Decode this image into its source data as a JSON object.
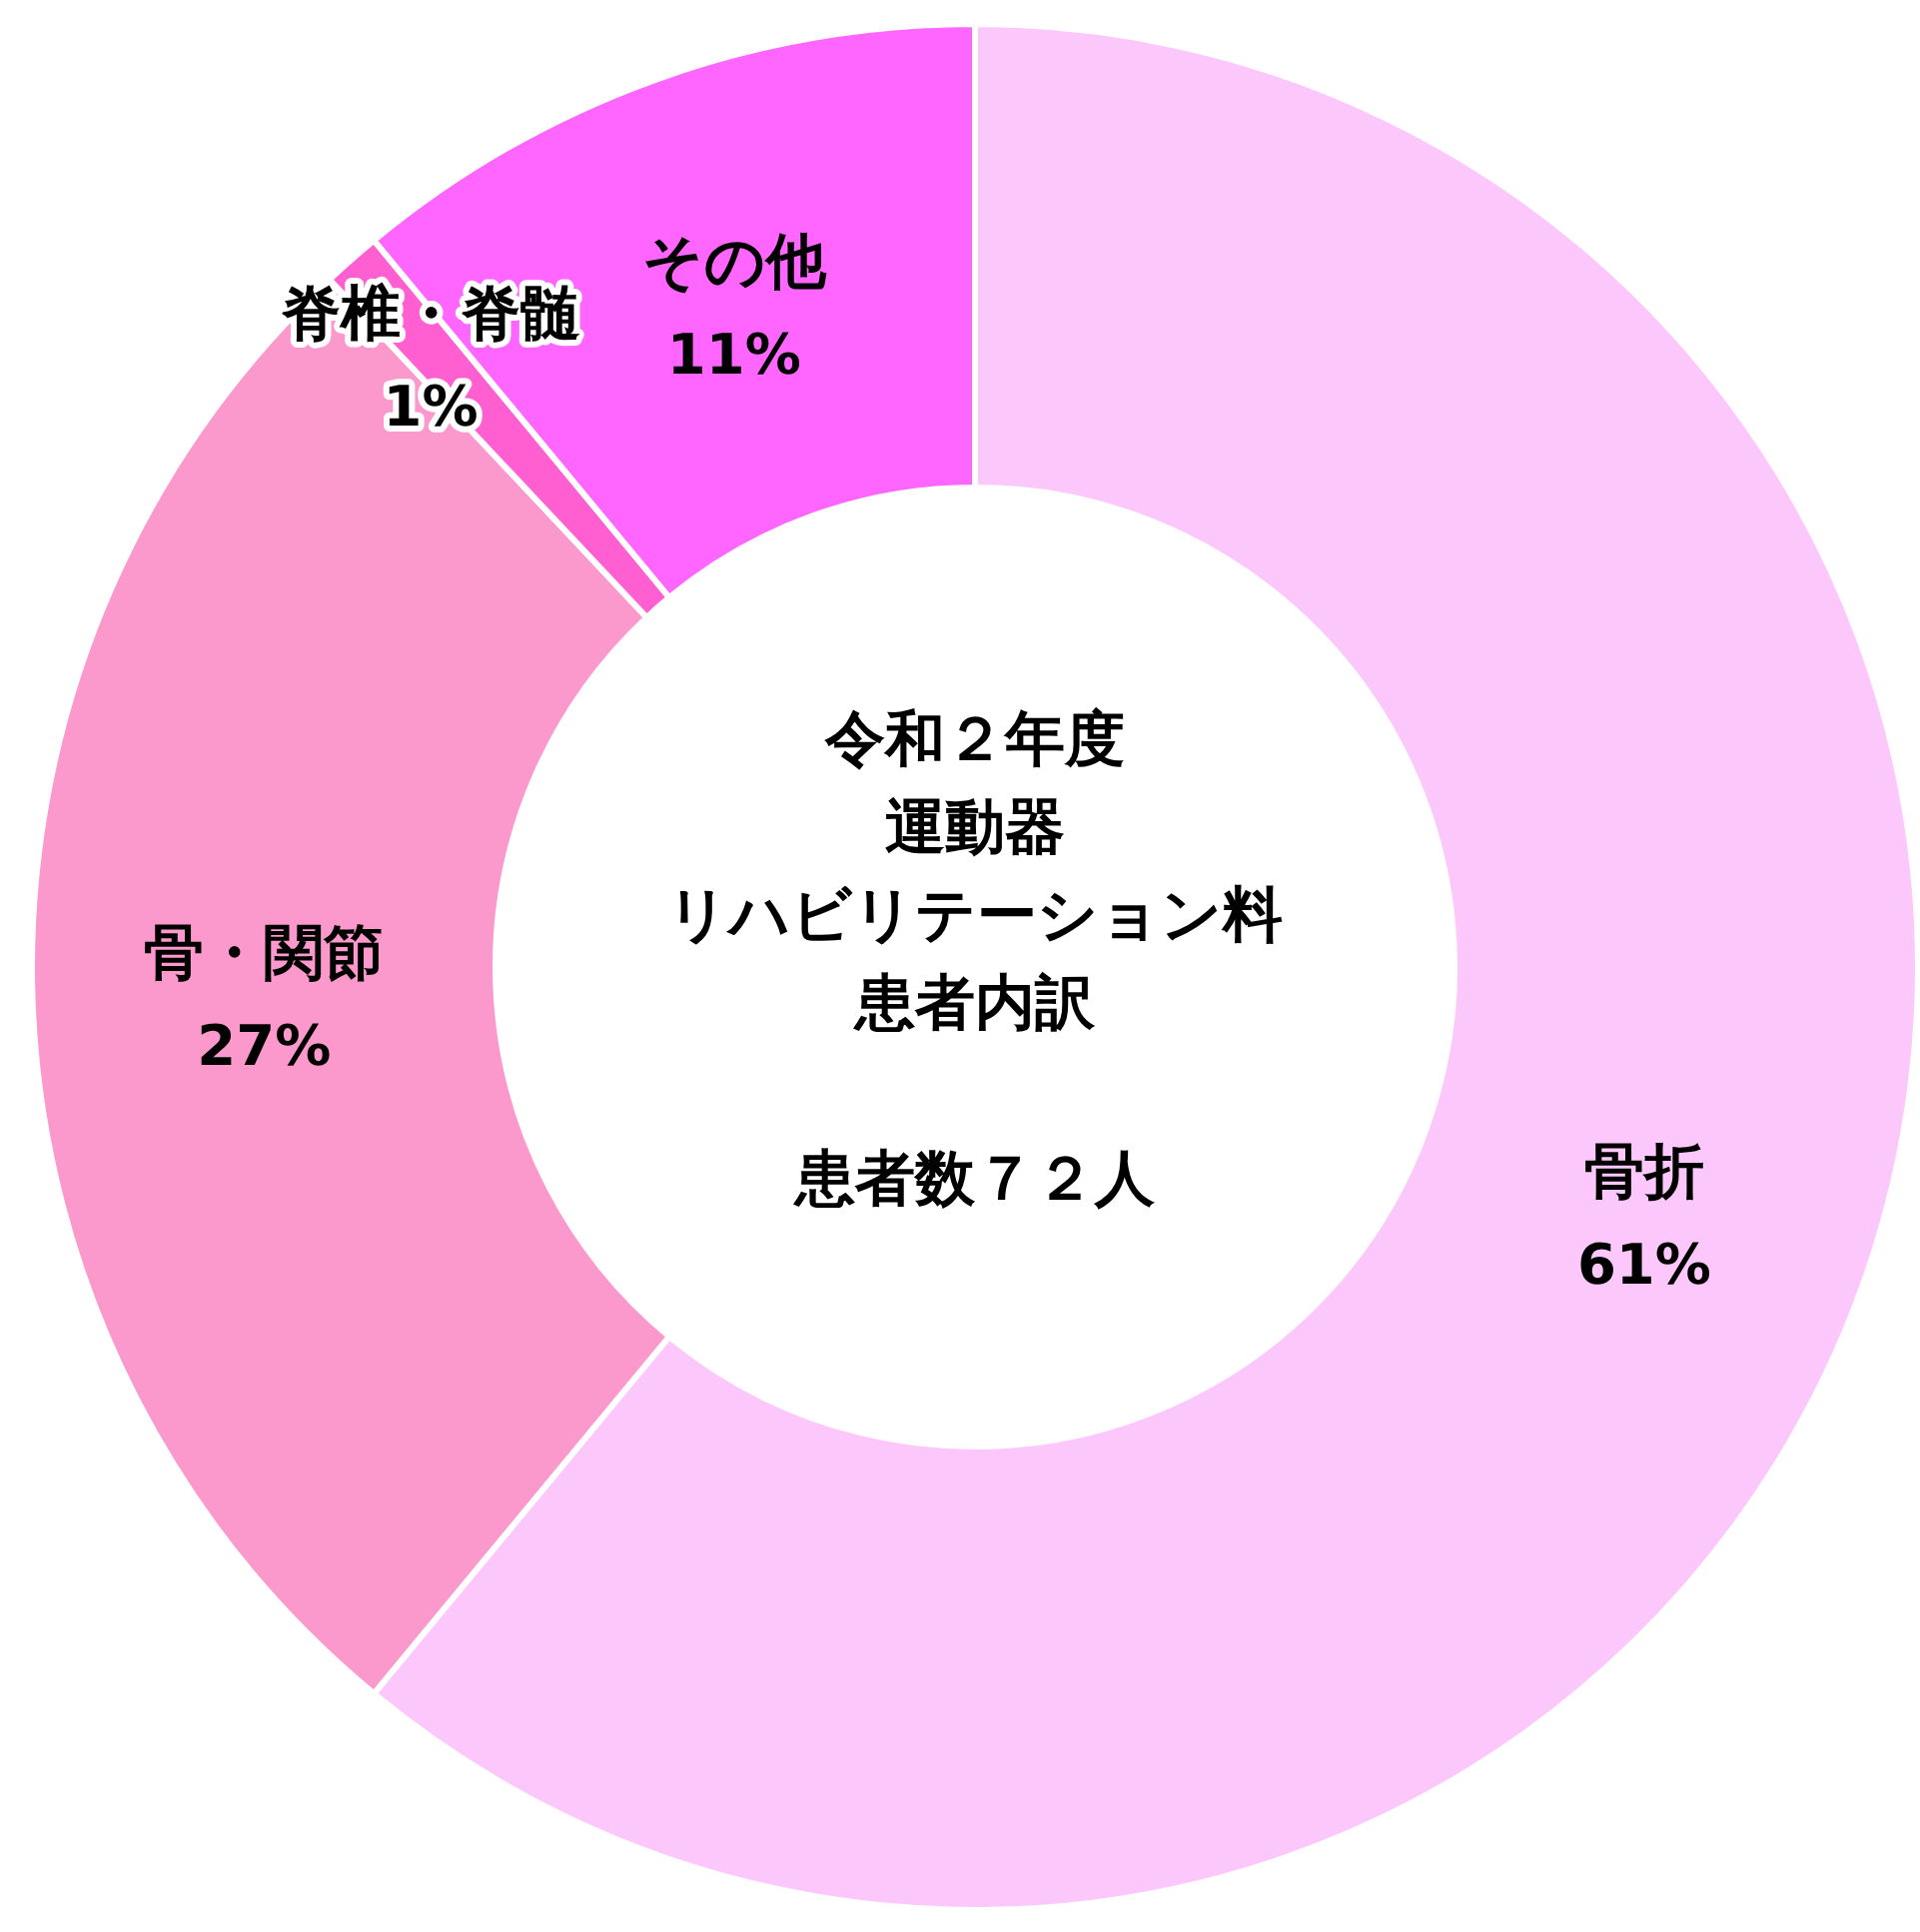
{
  "chart_data": {
    "type": "donut",
    "title": "令和２年度",
    "subtitle": "患者数７２人",
    "annotations": [
      "運動器",
      "リハビリテーション料",
      "患者内訳"
    ],
    "categories": [
      "骨折",
      "骨・関節",
      "脊椎・脊髄",
      "その他"
    ],
    "values": [
      61,
      27,
      1,
      11
    ],
    "value_labels": [
      "61%",
      "27%",
      "1%",
      "11%"
    ],
    "colors": [
      "#fcc8fc",
      "#fc99cc",
      "#ff5fd0",
      "#ff66ff"
    ]
  }
}
